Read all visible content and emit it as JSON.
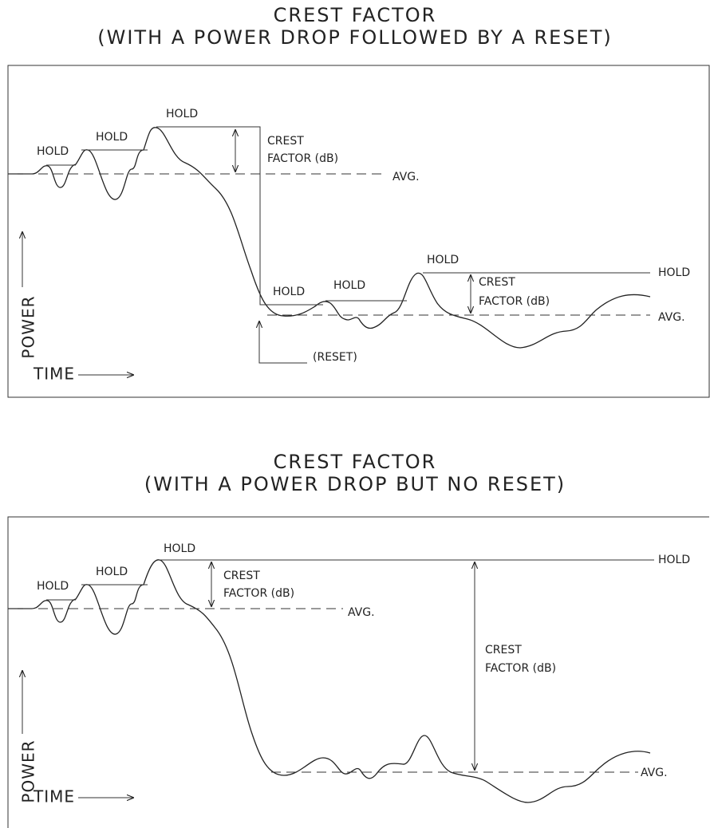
{
  "panels": [
    {
      "title": "CREST FACTOR",
      "subtitle": "(WITH A POWER DROP FOLLOWED BY A RESET)",
      "labels": [
        "HOLD",
        "HOLD",
        "HOLD",
        "CREST",
        "FACTOR (dB)",
        "AVG.",
        "HOLD",
        "HOLD",
        "HOLD",
        "HOLD",
        "CREST",
        "FACTOR (dB)",
        "AVG.",
        "(RESET)"
      ],
      "y_axis": "POWER",
      "x_axis": "TIME"
    },
    {
      "title": "CREST FACTOR",
      "subtitle": "(WITH A POWER DROP BUT NO RESET)",
      "labels": [
        "HOLD",
        "HOLD",
        "HOLD",
        "CREST",
        "FACTOR (dB)",
        "AVG.",
        "HOLD",
        "CREST",
        "FACTOR (dB)",
        "AVG."
      ],
      "y_axis": "POWER",
      "x_axis": "TIME"
    }
  ]
}
